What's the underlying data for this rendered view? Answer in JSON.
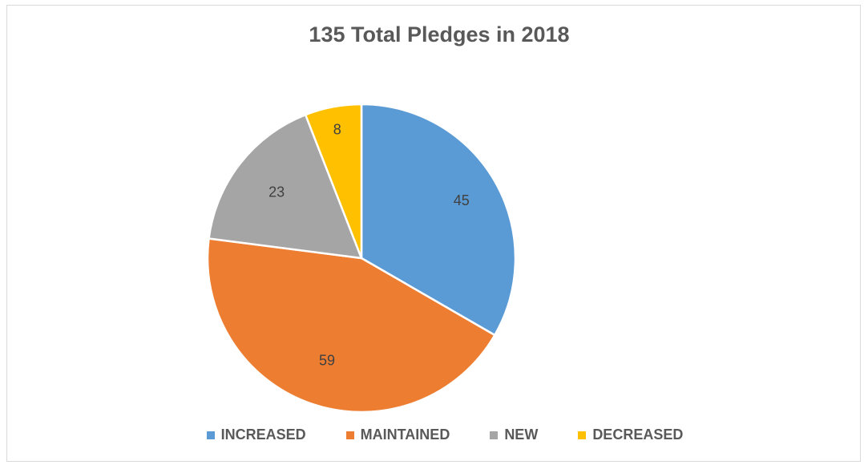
{
  "chart_data": {
    "type": "pie",
    "title": "135 Total Pledges in 2018",
    "slices": [
      {
        "label": "INCREASED",
        "value": 45,
        "color": "#5B9BD5"
      },
      {
        "label": "MAINTAINED",
        "value": 59,
        "color": "#ED7D31"
      },
      {
        "label": "NEW",
        "value": 23,
        "color": "#A5A5A5"
      },
      {
        "label": "DECREASED",
        "value": 8,
        "color": "#FFC000"
      }
    ],
    "legend_position": "bottom",
    "data_labels": true,
    "start_angle": "12 o'clock",
    "direction": "clockwise"
  }
}
